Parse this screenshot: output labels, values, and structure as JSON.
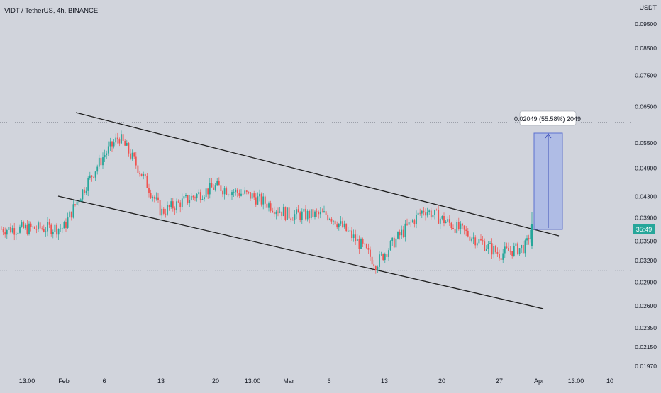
{
  "header": {
    "symbol_line": "VIDT / TetherUS, 4h, BINANCE"
  },
  "price_axis": {
    "unit_label": "USDT",
    "ticks": [
      "0.09500",
      "0.08500",
      "0.07500",
      "0.06500",
      "0.05500",
      "0.04900",
      "0.04300",
      "0.03900",
      "0.03500",
      "0.03200",
      "0.02900",
      "0.02600",
      "0.02350",
      "0.02150",
      "0.01970"
    ],
    "last_price_label": "35:49"
  },
  "time_axis": {
    "ticks": [
      "13:00",
      "Feb",
      "6",
      "13",
      "20",
      "13:00",
      "Mar",
      "6",
      "13",
      "20",
      "27",
      "Apr",
      "13:00",
      "10"
    ]
  },
  "measure_tool": {
    "label": "0.02049 (55.58%) 2049"
  },
  "colors": {
    "background": "#d1d4dc",
    "up": "#26a69a",
    "down": "#ef5350",
    "trendline": "#1e1e1e",
    "measure_fill": "#a9b7e6",
    "measure_stroke": "#5b6fd0"
  },
  "chart_data": {
    "type": "candlestick",
    "symbol": "VIDT / TetherUS",
    "interval": "4h",
    "exchange": "BINANCE",
    "y_unit": "USDT",
    "y_scale": "log",
    "ylim": [
      0.0194,
      0.098
    ],
    "x_ticks": [
      "13:00",
      "Feb",
      "6",
      "13",
      "20",
      "13:00",
      "Mar",
      "6",
      "13",
      "20",
      "27",
      "Apr",
      "13:00",
      "10"
    ],
    "price_path": [
      [
        "13:00",
        0.037
      ],
      [
        "Feb",
        0.0372
      ],
      [
        "6",
        0.052
      ],
      [
        "6+",
        0.0565
      ],
      [
        "13",
        0.04
      ],
      [
        "20",
        0.045
      ],
      [
        "13:00",
        0.043
      ],
      [
        "Mar",
        0.0395
      ],
      [
        "6",
        0.0395
      ],
      [
        "13",
        0.034
      ],
      [
        "13+",
        0.0315
      ],
      [
        "20",
        0.0405
      ],
      [
        "27",
        0.033
      ],
      [
        "Apr-",
        0.0342
      ],
      [
        "Apr",
        0.0378
      ]
    ],
    "last_price": 0.0378,
    "horizontal_levels": [
      0.0605,
      0.035,
      0.0306
    ],
    "channel_lines": [
      {
        "name": "upper",
        "from": [
          "Feb",
          0.061
        ],
        "to": [
          "Apr",
          0.036
        ]
      },
      {
        "name": "lower",
        "from": [
          "Feb",
          0.0425
        ],
        "to": [
          "Apr",
          0.0257
        ]
      }
    ],
    "measurement": {
      "from_price": 0.0369,
      "to_price": 0.0574,
      "change": 0.02049,
      "percent": 55.58
    }
  }
}
